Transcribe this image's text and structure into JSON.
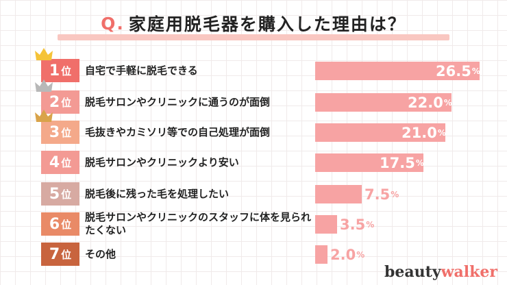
{
  "title": {
    "q": "Q.",
    "text": "家庭用脱毛器を購入した理由は？"
  },
  "chart_data": {
    "type": "bar",
    "orientation": "horizontal",
    "title": "Q.家庭用脱毛器を購入した理由は？",
    "unit": "%",
    "ranks": [
      "1",
      "2",
      "3",
      "4",
      "5",
      "6",
      "7"
    ],
    "rank_suffix": "位",
    "categories": [
      "自宅で手軽に脱毛できる",
      "脱毛サロンやクリニックに通うのが面倒",
      "毛抜きやカミソリ等での自己処理が面倒",
      "脱毛サロンやクリニックより安い",
      "脱毛後に残った毛を処理したい",
      "脱毛サロンやクリニックのスタッフに体を見られたくない",
      "その他"
    ],
    "values": [
      26.5,
      22.0,
      21.0,
      17.5,
      7.5,
      3.5,
      2.0
    ],
    "value_labels": [
      "26.5",
      "22.0",
      "21.0",
      "17.5",
      "7.5",
      "3.5",
      "2.0"
    ],
    "badge_colors": [
      "#f06f6a",
      "#f39a94",
      "#f4a98a",
      "#f39a94",
      "#d7aaa2",
      "#e98a67",
      "#c8643e"
    ],
    "bar_color": "#f7a3a3",
    "crowns": [
      "gold",
      "silver",
      "bronze"
    ]
  },
  "brand": {
    "part1": "beauty",
    "part2": "walker"
  }
}
